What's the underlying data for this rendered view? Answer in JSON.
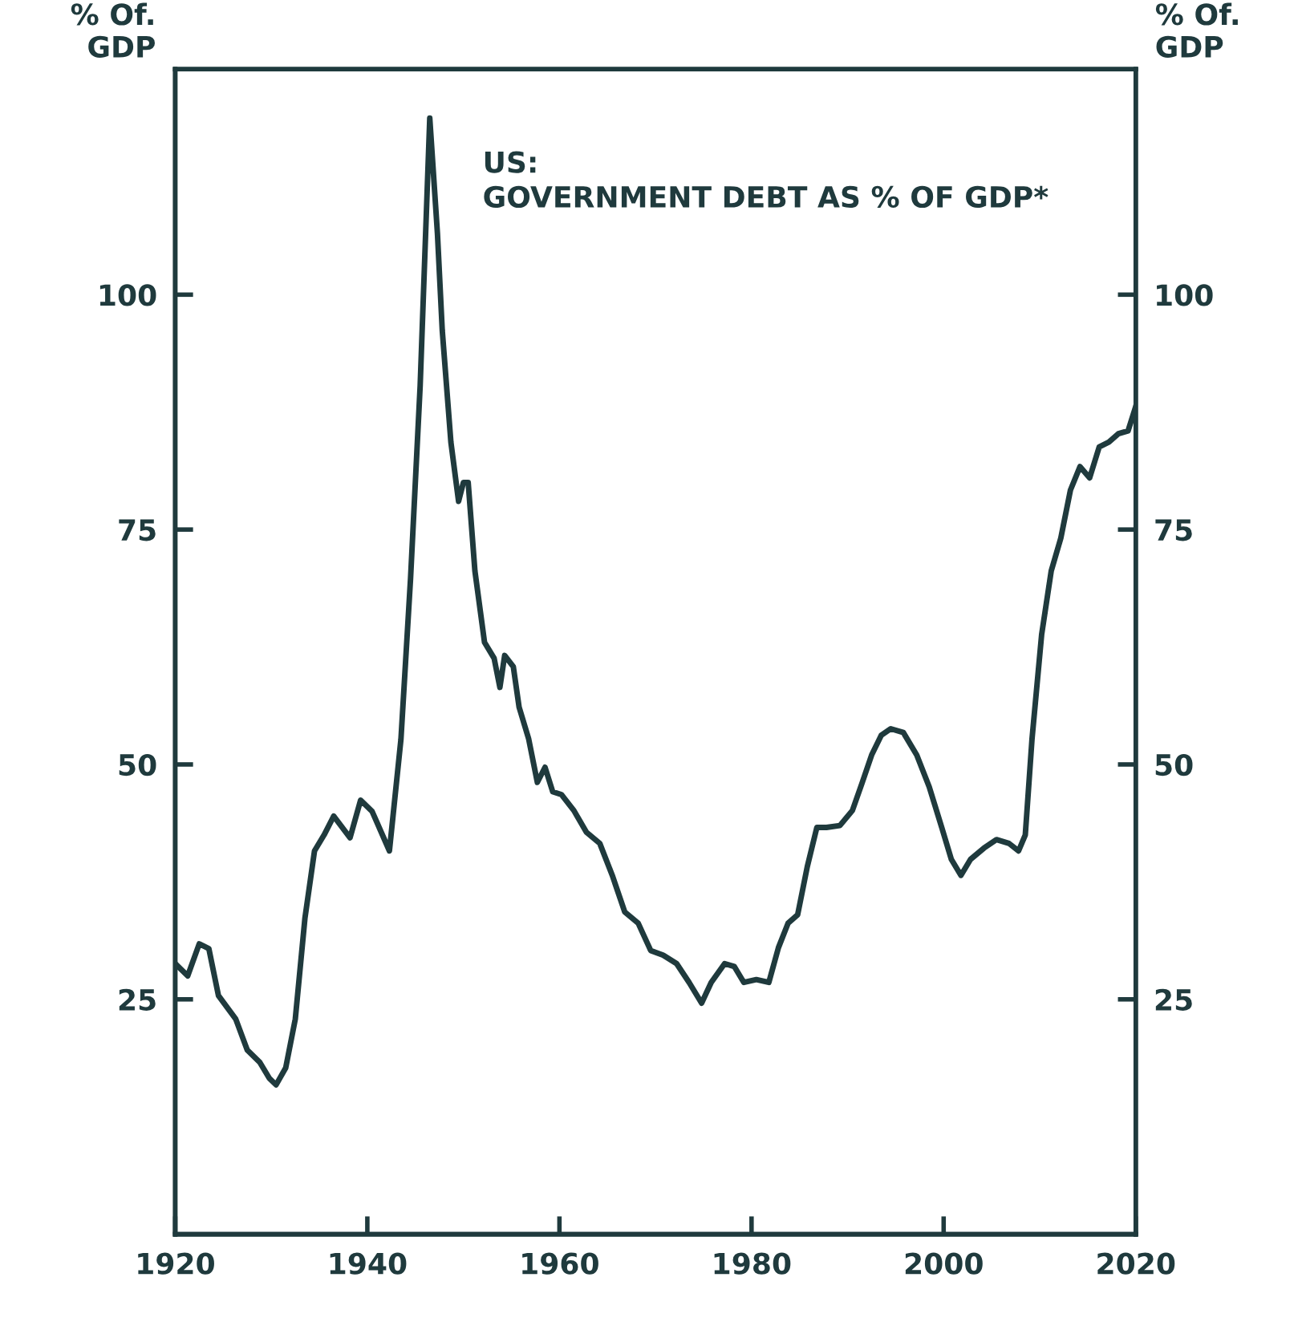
{
  "chart_data": {
    "type": "line",
    "title": "US:\nGOVERNMENT DEBT AS % OF GDP*",
    "ylabel": "% Of.\nGDP",
    "y2label": "% Of.\nGDP",
    "x": [
      1920,
      1921.3,
      1922.5,
      1923.5,
      1924.5,
      1926.3,
      1927.5,
      1928.8,
      1929.8,
      1930.5,
      1931.5,
      1932.5,
      1933.5,
      1934.5,
      1935.5,
      1936.5,
      1938.2,
      1939.3,
      1940.5,
      1942.3,
      1943.5,
      1944.5,
      1945.5,
      1946.5,
      1947.3,
      1947.8,
      1948.7,
      1949.5,
      1950,
      1950.5,
      1951.2,
      1952.2,
      1953.2,
      1953.8,
      1954.3,
      1955.2,
      1955.8,
      1956.8,
      1957.7,
      1958.5,
      1959.3,
      1960.2,
      1961.5,
      1962.8,
      1964.2,
      1965.5,
      1966.8,
      1968.2,
      1969.5,
      1970.8,
      1972.2,
      1973.5,
      1974.8,
      1975.8,
      1977.2,
      1978.2,
      1979.2,
      1980.5,
      1981.8,
      1982.8,
      1983.8,
      1984.8,
      1985.8,
      1986.8,
      1987.8,
      1989.2,
      1990.5,
      1991.5,
      1992.5,
      1993.5,
      1994.5,
      1995.8,
      1997.2,
      1998.5,
      1999.8,
      2000.8,
      2001.8,
      2002.8,
      2004.2,
      2005.5,
      2006.8,
      2007.8,
      2008.5,
      2009.2,
      2010.2,
      2011.2,
      2012.2,
      2013.2,
      2014.2,
      2015.2,
      2016.2,
      2017.2,
      2018.2,
      2019.2,
      2020
    ],
    "series": [
      {
        "color": "#1f3a3d",
        "values": [
          28.8,
          27.5,
          30.9,
          30.4,
          25.4,
          22.9,
          19.6,
          18.3,
          16.6,
          15.9,
          17.7,
          22.9,
          33.6,
          40.8,
          42.5,
          44.5,
          42.2,
          46.2,
          45,
          40.8,
          52.7,
          69.8,
          90.3,
          118.8,
          106.5,
          96.2,
          84.3,
          78,
          80,
          80,
          70.6,
          63,
          61.3,
          58.2,
          61.6,
          60.4,
          56.1,
          52.7,
          48.1,
          49.7,
          47.1,
          46.8,
          45.1,
          42.8,
          41.6,
          38.2,
          34.3,
          33.1,
          30.2,
          29.7,
          28.8,
          26.8,
          24.6,
          26.8,
          28.8,
          28.5,
          26.8,
          27.1,
          26.8,
          30.5,
          33.1,
          34,
          39.1,
          43.3,
          43.3,
          43.5,
          45.1,
          48,
          51,
          53.1,
          53.8,
          53.4,
          51,
          47.6,
          43.3,
          39.9,
          38.2,
          39.9,
          41.1,
          42,
          41.6,
          40.8,
          42.5,
          52.7,
          63.8,
          70.6,
          74.1,
          79.2,
          81.7,
          80.5,
          83.8,
          84.3,
          85.2,
          85.5,
          88.1
        ]
      }
    ],
    "xlim": [
      1920,
      2020
    ],
    "xticks": [
      1920,
      1940,
      1960,
      1980,
      2000,
      2020
    ],
    "ylim": [
      0,
      124
    ],
    "yticks": [
      25,
      50,
      75,
      100
    ],
    "y2lim": [
      0,
      124
    ],
    "y2ticks": [
      25,
      50,
      75,
      100
    ],
    "grid": false,
    "legend": false,
    "marker": "none",
    "line_style": "solid"
  }
}
